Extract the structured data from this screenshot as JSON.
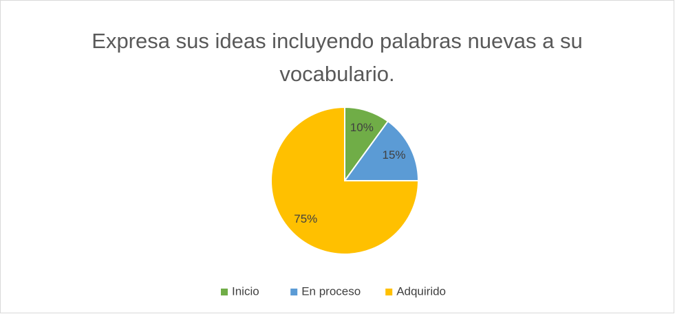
{
  "chart_data": {
    "type": "pie",
    "title": "Expresa sus ideas incluyendo palabras nuevas a su vocabulario.",
    "categories": [
      "Inicio",
      "En proceso",
      "Adquirido"
    ],
    "values": [
      10,
      15,
      75
    ],
    "value_labels": [
      "10%",
      "15%",
      "75%"
    ],
    "colors": [
      "#70ad47",
      "#5b9bd5",
      "#ffc000"
    ],
    "legend": "bottom"
  }
}
